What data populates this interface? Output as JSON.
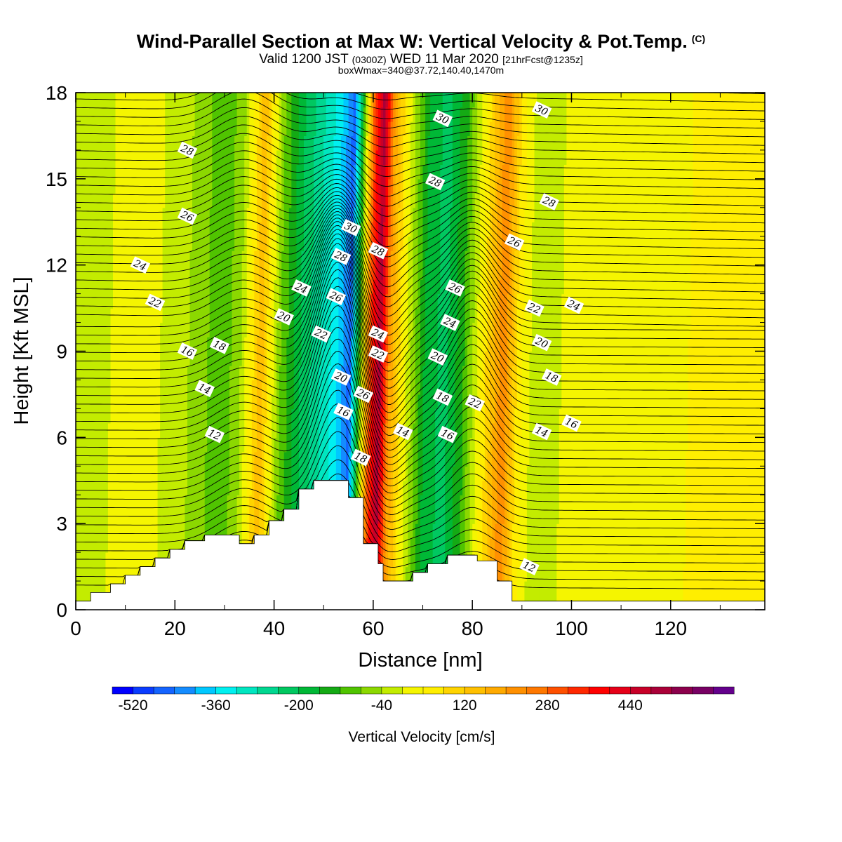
{
  "title": {
    "main": "Wind-Parallel Section at Max W: Vertical Velocity & Pot.Temp.",
    "copyright": "(C)",
    "valid_prefix": "Valid 1200 JST",
    "valid_z": "(0300Z)",
    "valid_date": "WED 11 Mar 2020",
    "forecast": "[21hrFcst@1235z]",
    "boxmax": "boxWmax=340@37.72,140.40,1470m"
  },
  "chart_data": {
    "type": "heatmap",
    "xlabel": "Distance [nm]",
    "ylabel": "Height [Kft MSL]",
    "xlim": [
      0,
      139
    ],
    "ylim": [
      0,
      18
    ],
    "x_ticks": [
      0,
      20,
      40,
      60,
      80,
      100,
      120
    ],
    "y_ticks": [
      0,
      3,
      6,
      9,
      12,
      15,
      18
    ],
    "colorbar": {
      "title": "Vertical Velocity [cm/s]",
      "levels_start": -560,
      "levels_step": 40,
      "tick_labels": [
        "-520",
        "-360",
        "-200",
        "-40",
        "120",
        "280",
        "440"
      ],
      "tick_values": [
        -520,
        -360,
        -200,
        -40,
        120,
        280,
        440
      ],
      "colors": [
        "#0000ff",
        "#0a3cff",
        "#1464ff",
        "#148cff",
        "#00c8ff",
        "#00f0f0",
        "#00e6c0",
        "#00d790",
        "#00c860",
        "#00b836",
        "#14aa14",
        "#50c400",
        "#8cd800",
        "#c3ec00",
        "#f5f500",
        "#ffee00",
        "#ffd400",
        "#ffc000",
        "#ffaa00",
        "#ff9000",
        "#ff7800",
        "#ff5000",
        "#ff2800",
        "#ff0000",
        "#e60018",
        "#c80028",
        "#aa0038",
        "#8c004c",
        "#780064",
        "#64008c"
      ]
    },
    "vertical_velocity_bands": [
      {
        "x": 0,
        "w": -40
      },
      {
        "x": 5,
        "w": -10
      },
      {
        "x": 12,
        "w": 30
      },
      {
        "x": 20,
        "w": -20
      },
      {
        "x": 25,
        "w": -60
      },
      {
        "x": 29,
        "w": -120
      },
      {
        "x": 33,
        "w": -40
      },
      {
        "x": 37,
        "w": 150
      },
      {
        "x": 41,
        "w": -80
      },
      {
        "x": 45,
        "w": -200
      },
      {
        "x": 49,
        "w": -280
      },
      {
        "x": 52,
        "w": -340
      },
      {
        "x": 55,
        "w": -460
      },
      {
        "x": 57,
        "w": -100
      },
      {
        "x": 59,
        "w": 300
      },
      {
        "x": 61,
        "w": 500
      },
      {
        "x": 63,
        "w": 200
      },
      {
        "x": 66,
        "w": 20
      },
      {
        "x": 70,
        "w": -160
      },
      {
        "x": 74,
        "w": -220
      },
      {
        "x": 78,
        "w": -120
      },
      {
        "x": 82,
        "w": 60
      },
      {
        "x": 86,
        "w": 240
      },
      {
        "x": 89,
        "w": 60
      },
      {
        "x": 93,
        "w": -40
      },
      {
        "x": 100,
        "w": 20
      },
      {
        "x": 110,
        "w": 40
      },
      {
        "x": 120,
        "w": 30
      },
      {
        "x": 130,
        "w": 60
      },
      {
        "x": 139,
        "w": 40
      }
    ],
    "terrain": [
      [
        0,
        0.3
      ],
      [
        3,
        0.6
      ],
      [
        7,
        0.9
      ],
      [
        10,
        1.2
      ],
      [
        13,
        1.5
      ],
      [
        16,
        1.8
      ],
      [
        19,
        2.1
      ],
      [
        22,
        2.4
      ],
      [
        26,
        2.6
      ],
      [
        32,
        2.6
      ],
      [
        33,
        2.3
      ],
      [
        36,
        2.6
      ],
      [
        39,
        3.1
      ],
      [
        42,
        3.5
      ],
      [
        45,
        4.2
      ],
      [
        48,
        4.5
      ],
      [
        51,
        4.5
      ],
      [
        55,
        3.9
      ],
      [
        58,
        2.3
      ],
      [
        61,
        1.6
      ],
      [
        62,
        1.0
      ],
      [
        68,
        1.3
      ],
      [
        71,
        1.6
      ],
      [
        75,
        1.9
      ],
      [
        81,
        1.7
      ],
      [
        85,
        1.0
      ],
      [
        88,
        0.3
      ],
      [
        139,
        0.3
      ]
    ],
    "theta_contours": [
      {
        "level": 12,
        "label_pos": [
          [
            28,
            6.1
          ],
          [
            91.5,
            1.5
          ]
        ]
      },
      {
        "level": 14,
        "label_pos": [
          [
            26,
            7.7
          ],
          [
            66,
            6.2
          ],
          [
            94,
            6.2
          ]
        ]
      },
      {
        "level": 16,
        "label_pos": [
          [
            22.5,
            9.0
          ],
          [
            54,
            6.9
          ],
          [
            75,
            6.1
          ],
          [
            100,
            6.5
          ]
        ]
      },
      {
        "level": 18,
        "label_pos": [
          [
            29,
            9.2
          ],
          [
            57.5,
            5.3
          ],
          [
            74,
            7.4
          ],
          [
            96,
            8.1
          ]
        ]
      },
      {
        "level": 20,
        "label_pos": [
          [
            42,
            10.2
          ],
          [
            53.5,
            8.1
          ],
          [
            73,
            8.8
          ],
          [
            94,
            9.3
          ]
        ]
      },
      {
        "level": 22,
        "label_pos": [
          [
            16,
            10.7
          ],
          [
            49.5,
            9.6
          ],
          [
            61,
            8.9
          ],
          [
            80.5,
            7.2
          ],
          [
            92.5,
            10.5
          ]
        ]
      },
      {
        "level": 24,
        "label_pos": [
          [
            13,
            12.0
          ],
          [
            45.5,
            11.2
          ],
          [
            61,
            9.6
          ],
          [
            75.5,
            10.0
          ],
          [
            100.5,
            10.6
          ]
        ]
      },
      {
        "level": 26,
        "label_pos": [
          [
            22.5,
            13.7
          ],
          [
            52.5,
            10.9
          ],
          [
            58,
            7.5
          ],
          [
            76.5,
            11.2
          ],
          [
            88.5,
            12.8
          ]
        ]
      },
      {
        "level": 28,
        "label_pos": [
          [
            22.5,
            16.0
          ],
          [
            53.5,
            12.3
          ],
          [
            61,
            12.5
          ],
          [
            72.5,
            14.9
          ],
          [
            95.5,
            14.2
          ]
        ]
      },
      {
        "level": 30,
        "label_pos": [
          [
            55.5,
            13.3
          ],
          [
            74,
            17.1
          ],
          [
            94,
            17.4
          ]
        ]
      }
    ]
  }
}
